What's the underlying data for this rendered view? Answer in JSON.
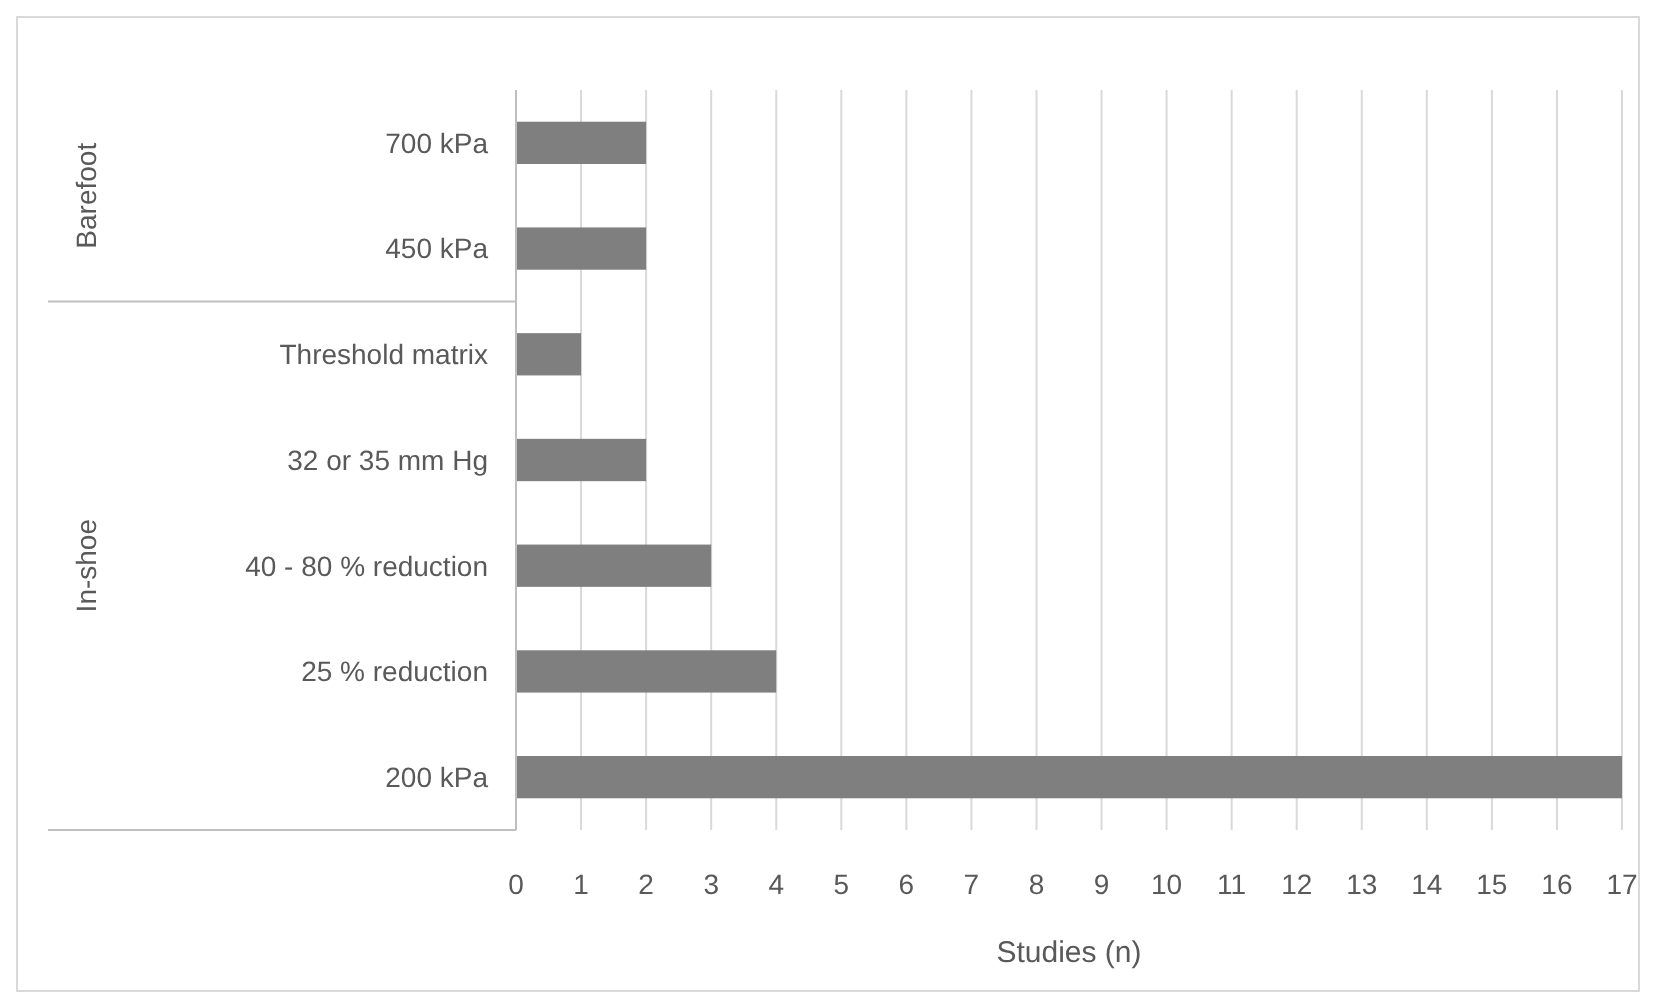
{
  "chart_data": {
    "type": "bar",
    "orientation": "horizontal",
    "xlabel": "Studies (n)",
    "categories": [
      "700 kPa",
      "450 kPa",
      "Threshold matrix",
      "32 or 35 mm Hg",
      "40 - 80 % reduction",
      "25 % reduction",
      "200 kPa"
    ],
    "values": [
      2,
      2,
      1,
      2,
      3,
      4,
      17
    ],
    "color": "#7f7f7f",
    "xlim": [
      0,
      17
    ],
    "xticks": [
      0,
      1,
      2,
      3,
      4,
      5,
      6,
      7,
      8,
      9,
      10,
      11,
      12,
      13,
      14,
      15,
      16,
      17
    ],
    "grid": "x",
    "annotations": [
      "Barefoot",
      "In-shoe"
    ]
  }
}
